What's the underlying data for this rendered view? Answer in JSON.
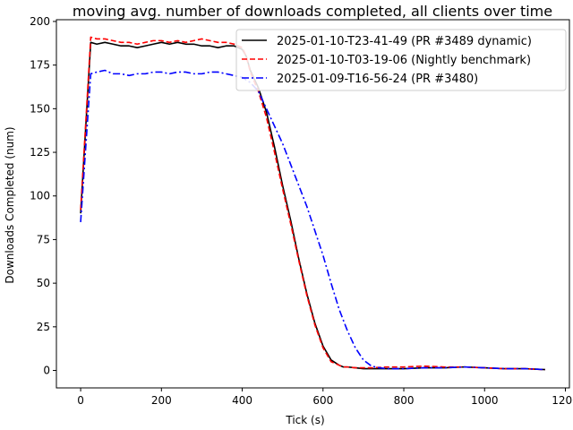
{
  "chart_data": {
    "type": "line",
    "title": "moving avg. number of downloads completed, all clients over time",
    "xlabel": "Tick (s)",
    "ylabel": "Downloads Completed (num)",
    "xlim": [
      -60,
      1210
    ],
    "ylim": [
      -10,
      201
    ],
    "x_ticks": [
      0,
      200,
      400,
      600,
      800,
      1000,
      1200
    ],
    "y_ticks": [
      0,
      25,
      50,
      75,
      100,
      125,
      150,
      175,
      200
    ],
    "x_tick_labels": [
      "0",
      "200",
      "400",
      "600",
      "800",
      "1000",
      "1200"
    ],
    "y_tick_labels": [
      "0",
      "25",
      "50",
      "75",
      "100",
      "125",
      "150",
      "175",
      "200"
    ],
    "grid": false,
    "legend_position": "top-right",
    "series": [
      {
        "name": "2025-01-10-T23-41-49 (PR #3489 dynamic)",
        "color": "#000000",
        "dash": "solid",
        "x": [
          0,
          25,
          40,
          60,
          80,
          100,
          120,
          140,
          160,
          180,
          200,
          220,
          240,
          260,
          280,
          300,
          320,
          340,
          360,
          380,
          400,
          410,
          420,
          440,
          460,
          480,
          500,
          520,
          540,
          560,
          580,
          600,
          620,
          640,
          650,
          660,
          680,
          700,
          720,
          760,
          800,
          850,
          900,
          950,
          1000,
          1050,
          1100,
          1150
        ],
        "y": [
          90,
          188,
          187,
          188,
          187,
          186,
          186,
          185,
          186,
          187,
          188,
          187,
          188,
          187,
          187,
          186,
          186,
          185,
          186,
          186,
          184,
          180,
          172,
          162,
          148,
          128,
          106,
          86,
          64,
          44,
          27,
          14,
          6,
          3,
          2,
          2,
          1.5,
          1,
          1,
          1,
          1,
          1.5,
          1.5,
          2,
          1.5,
          1,
          1,
          0.5
        ]
      },
      {
        "name": "2025-01-10-T03-19-06 (Nightly benchmark)",
        "color": "#ff0000",
        "dash": "dashed",
        "x": [
          0,
          25,
          40,
          60,
          80,
          100,
          120,
          140,
          160,
          180,
          200,
          220,
          240,
          260,
          280,
          300,
          320,
          340,
          360,
          380,
          400,
          410,
          420,
          440,
          460,
          480,
          500,
          520,
          540,
          560,
          580,
          600,
          620,
          640,
          650,
          660,
          680,
          700,
          720,
          760,
          800,
          850,
          900,
          950,
          1000,
          1050,
          1100,
          1150
        ],
        "y": [
          92,
          191,
          190,
          190,
          189,
          188,
          188,
          187,
          188,
          189,
          189,
          188,
          189,
          188,
          189,
          190,
          189,
          188,
          188,
          187,
          185,
          180,
          171,
          160,
          145,
          125,
          104,
          84,
          63,
          43,
          26,
          13,
          5,
          3,
          2,
          2,
          1.5,
          1.5,
          1.5,
          2,
          2,
          2.5,
          2,
          2,
          1.5,
          1,
          1,
          0.5
        ]
      },
      {
        "name": "2025-01-09-T16-56-24 (PR #3480)",
        "color": "#0000ff",
        "dash": "dashdot",
        "x": [
          0,
          25,
          40,
          60,
          80,
          100,
          120,
          140,
          160,
          180,
          200,
          220,
          240,
          260,
          280,
          300,
          320,
          340,
          360,
          380,
          400,
          420,
          440,
          460,
          480,
          500,
          520,
          540,
          560,
          580,
          600,
          620,
          640,
          660,
          680,
          700,
          720,
          740,
          760,
          780,
          800,
          850,
          900,
          950,
          1000,
          1050,
          1100,
          1150
        ],
        "y": [
          85,
          170,
          171,
          172,
          170,
          170,
          169,
          170,
          170,
          171,
          171,
          170,
          171,
          171,
          170,
          170,
          171,
          171,
          170,
          169,
          168,
          165,
          160,
          150,
          140,
          130,
          118,
          106,
          94,
          80,
          66,
          50,
          35,
          23,
          13,
          6,
          2.5,
          1.5,
          1,
          1,
          1,
          1.5,
          1.5,
          2,
          1.5,
          1,
          1,
          0.5
        ]
      }
    ]
  }
}
